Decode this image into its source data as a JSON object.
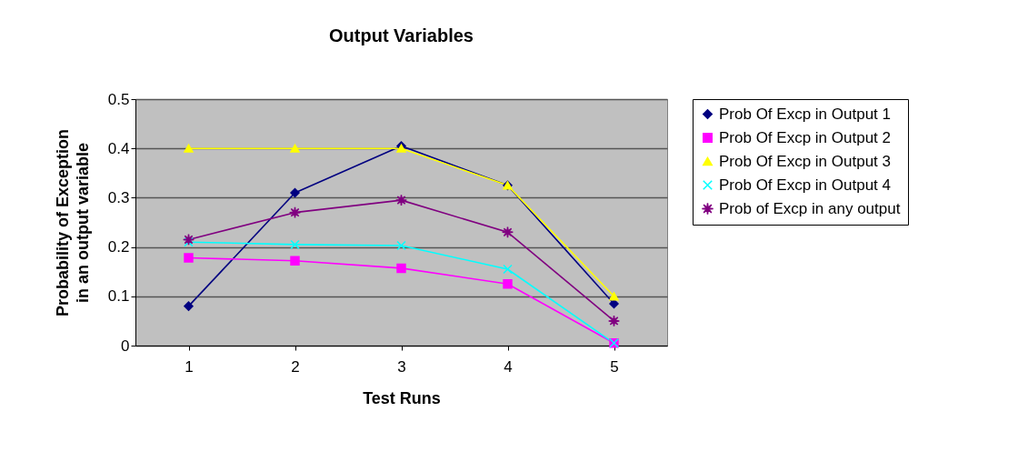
{
  "chart_data": {
    "type": "line",
    "title": "Output Variables",
    "xlabel": "Test Runs",
    "ylabel": "Probability of Exception in an output variable",
    "categories": [
      "1",
      "2",
      "3",
      "4",
      "5"
    ],
    "ylim": [
      0,
      0.5
    ],
    "yticks": [
      {
        "value": 0,
        "label": "0"
      },
      0.1,
      0.2,
      0.3,
      0.4,
      0.5
    ],
    "grid": "y",
    "legend": "right",
    "series": [
      {
        "name": "Prob Of Excp in Output 1",
        "color": "#000080",
        "marker": "diamond",
        "values": [
          0.08,
          0.31,
          0.405,
          0.325,
          0.085
        ]
      },
      {
        "name": "Prob Of Excp in Output 2",
        "color": "#ff00ff",
        "marker": "square",
        "values": [
          0.178,
          0.172,
          0.157,
          0.125,
          0.005
        ]
      },
      {
        "name": "Prob Of Excp in Output 3",
        "color": "#ffff00",
        "marker": "triangle",
        "values": [
          0.4,
          0.4,
          0.4,
          0.325,
          0.1
        ]
      },
      {
        "name": "Prob Of Excp in Output 4",
        "color": "#00ffff",
        "marker": "cross",
        "values": [
          0.21,
          0.205,
          0.203,
          0.155,
          0.005
        ]
      },
      {
        "name": "Prob of Excp in any output",
        "color": "#800080",
        "marker": "star",
        "values": [
          0.215,
          0.27,
          0.295,
          0.23,
          0.05
        ]
      }
    ]
  }
}
